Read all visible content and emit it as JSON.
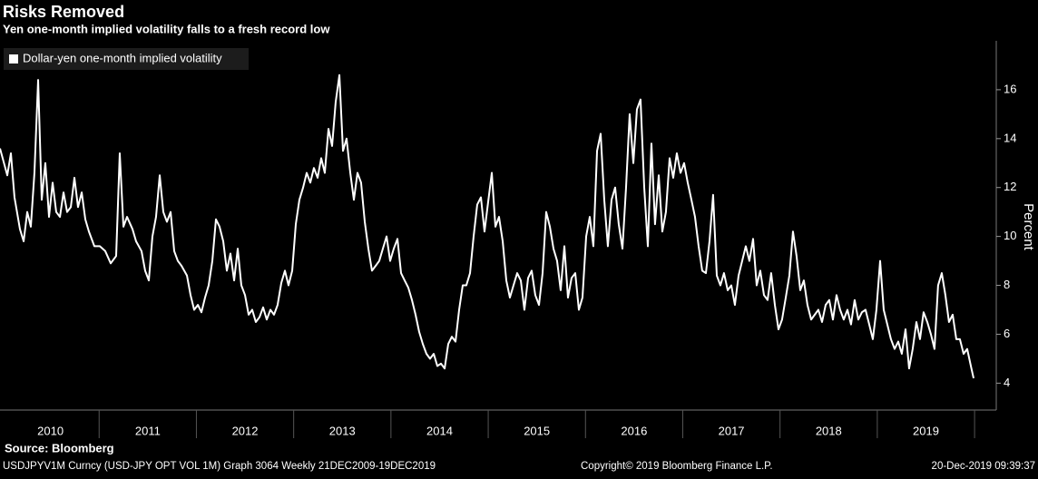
{
  "chart_data": {
    "type": "line",
    "title": "Risks Removed",
    "subtitle": "Yen one-month implied volatility falls to a fresh record low",
    "y_label": "Percent",
    "source": "Source: Bloomberg",
    "xlim": [
      2009.981,
      2020.223
    ],
    "xticks": [
      {
        "value": 2010.5,
        "label": "2010"
      },
      {
        "value": 2011.5,
        "label": "2011"
      },
      {
        "value": 2012.5,
        "label": "2012"
      },
      {
        "value": 2013.5,
        "label": "2013"
      },
      {
        "value": 2014.5,
        "label": "2014"
      },
      {
        "value": 2015.5,
        "label": "2015"
      },
      {
        "value": 2016.5,
        "label": "2016"
      },
      {
        "value": 2017.5,
        "label": "2017"
      },
      {
        "value": 2018.5,
        "label": "2018"
      },
      {
        "value": 2019.5,
        "label": "2019"
      }
    ],
    "ylim": [
      2.9,
      18
    ],
    "yticks": [
      4,
      6,
      8,
      10,
      12,
      14,
      16
    ],
    "grid": false,
    "legend": "top-left",
    "x": [
      2009.981,
      2010.056,
      2010.093,
      2010.13,
      2010.186,
      2010.224,
      2010.261,
      2010.298,
      2010.335,
      2010.373,
      2010.41,
      2010.447,
      2010.485,
      2010.522,
      2010.559,
      2010.597,
      2010.634,
      2010.671,
      2010.709,
      2010.746,
      2010.783,
      2010.821,
      2010.858,
      2010.895,
      2010.951,
      2011.007,
      2011.063,
      2011.119,
      2011.175,
      2011.212,
      2011.25,
      2011.287,
      2011.343,
      2011.38,
      2011.436,
      2011.473,
      2011.511,
      2011.548,
      2011.585,
      2011.623,
      2011.66,
      2011.697,
      2011.735,
      2011.772,
      2011.809,
      2011.847,
      2011.903,
      2011.94,
      2011.977,
      2012.015,
      2012.052,
      2012.089,
      2012.126,
      2012.164,
      2012.201,
      2012.238,
      2012.276,
      2012.313,
      2012.35,
      2012.388,
      2012.425,
      2012.462,
      2012.5,
      2012.537,
      2012.574,
      2012.611,
      2012.649,
      2012.686,
      2012.723,
      2012.761,
      2012.798,
      2012.835,
      2012.873,
      2012.91,
      2012.947,
      2012.985,
      2013.022,
      2013.059,
      2013.097,
      2013.134,
      2013.171,
      2013.208,
      2013.246,
      2013.283,
      2013.32,
      2013.358,
      2013.395,
      2013.432,
      2013.47,
      2013.507,
      2013.544,
      2013.582,
      2013.619,
      2013.656,
      2013.693,
      2013.731,
      2013.768,
      2013.805,
      2013.843,
      2013.88,
      2013.917,
      2013.955,
      2013.992,
      2014.029,
      2014.067,
      2014.104,
      2014.141,
      2014.179,
      2014.216,
      2014.253,
      2014.29,
      2014.328,
      2014.365,
      2014.402,
      2014.44,
      2014.477,
      2014.514,
      2014.552,
      2014.589,
      2014.626,
      2014.664,
      2014.701,
      2014.738,
      2014.775,
      2014.813,
      2014.85,
      2014.887,
      2014.925,
      2014.962,
      2014.999,
      2015.037,
      2015.074,
      2015.111,
      2015.149,
      2015.186,
      2015.223,
      2015.26,
      2015.298,
      2015.335,
      2015.372,
      2015.41,
      2015.447,
      2015.484,
      2015.522,
      2015.559,
      2015.596,
      2015.634,
      2015.671,
      2015.708,
      2015.745,
      2015.783,
      2015.82,
      2015.857,
      2015.895,
      2015.932,
      2015.969,
      2016.007,
      2016.044,
      2016.081,
      2016.119,
      2016.156,
      2016.193,
      2016.23,
      2016.268,
      2016.305,
      2016.342,
      2016.38,
      2016.417,
      2016.454,
      2016.492,
      2016.529,
      2016.566,
      2016.604,
      2016.641,
      2016.678,
      2016.715,
      2016.753,
      2016.79,
      2016.827,
      2016.865,
      2016.902,
      2016.939,
      2016.977,
      2017.014,
      2017.051,
      2017.089,
      2017.126,
      2017.163,
      2017.2,
      2017.238,
      2017.275,
      2017.312,
      2017.35,
      2017.387,
      2017.424,
      2017.462,
      2017.499,
      2017.536,
      2017.574,
      2017.611,
      2017.648,
      2017.685,
      2017.723,
      2017.76,
      2017.797,
      2017.835,
      2017.872,
      2017.909,
      2017.947,
      2017.984,
      2018.021,
      2018.059,
      2018.096,
      2018.133,
      2018.17,
      2018.208,
      2018.245,
      2018.282,
      2018.32,
      2018.357,
      2018.394,
      2018.432,
      2018.469,
      2018.506,
      2018.544,
      2018.581,
      2018.618,
      2018.655,
      2018.693,
      2018.73,
      2018.767,
      2018.805,
      2018.842,
      2018.879,
      2018.917,
      2018.954,
      2018.991,
      2019.029,
      2019.066,
      2019.103,
      2019.14,
      2019.178,
      2019.215,
      2019.252,
      2019.29,
      2019.327,
      2019.364,
      2019.402,
      2019.439,
      2019.476,
      2019.514,
      2019.551,
      2019.588,
      2019.625,
      2019.663,
      2019.7,
      2019.737,
      2019.775,
      2019.812,
      2019.849,
      2019.887,
      2019.924,
      2019.962,
      2019.99
    ],
    "series": [
      {
        "name": "Dollar-yen one-month implied volatility",
        "color": "#ffffff",
        "values": [
          13.6,
          12.5,
          13.4,
          11.6,
          10.3,
          9.8,
          11.0,
          10.4,
          12.6,
          16.4,
          11.5,
          13.0,
          10.8,
          12.2,
          11.0,
          10.8,
          11.8,
          11.0,
          11.2,
          12.4,
          11.2,
          11.8,
          10.7,
          10.2,
          9.6,
          9.6,
          9.4,
          8.9,
          9.2,
          13.4,
          10.4,
          10.8,
          10.3,
          9.8,
          9.4,
          8.6,
          8.2,
          10.0,
          10.8,
          12.5,
          11.0,
          10.6,
          11.0,
          9.4,
          9.0,
          8.8,
          8.4,
          7.6,
          7.0,
          7.2,
          6.9,
          7.5,
          8.0,
          9.0,
          10.7,
          10.4,
          9.8,
          8.6,
          9.3,
          8.2,
          9.5,
          8.0,
          7.6,
          6.8,
          7.0,
          6.5,
          6.7,
          7.1,
          6.6,
          7.0,
          6.8,
          7.2,
          8.1,
          8.6,
          8.0,
          8.6,
          10.5,
          11.5,
          12.0,
          12.6,
          12.2,
          12.8,
          12.4,
          13.2,
          12.6,
          14.4,
          13.7,
          15.5,
          16.6,
          13.5,
          14.0,
          12.6,
          11.5,
          12.6,
          12.2,
          10.6,
          9.5,
          8.6,
          8.8,
          9.0,
          9.5,
          10.0,
          9.0,
          9.5,
          9.9,
          8.5,
          8.2,
          7.9,
          7.4,
          6.8,
          6.1,
          5.6,
          5.2,
          5.0,
          5.2,
          4.7,
          4.8,
          4.6,
          5.6,
          5.9,
          5.7,
          7.0,
          8.0,
          8.0,
          8.5,
          10.0,
          11.3,
          11.6,
          10.2,
          11.4,
          12.6,
          10.4,
          10.8,
          9.8,
          8.2,
          7.5,
          8.0,
          8.5,
          8.2,
          7.0,
          8.3,
          8.6,
          7.6,
          7.2,
          8.5,
          11.0,
          10.4,
          9.5,
          9.0,
          7.8,
          9.6,
          7.5,
          8.3,
          8.5,
          7.0,
          7.5,
          10.0,
          10.8,
          9.6,
          13.5,
          14.2,
          11.5,
          9.6,
          11.5,
          12.0,
          10.5,
          9.5,
          12.0,
          15.0,
          13.0,
          15.2,
          15.6,
          12.0,
          9.6,
          13.8,
          10.5,
          12.5,
          10.2,
          11.0,
          13.2,
          12.4,
          13.4,
          12.6,
          13.0,
          12.2,
          11.5,
          10.8,
          9.6,
          8.6,
          8.5,
          9.8,
          11.7,
          8.4,
          8.0,
          8.5,
          7.8,
          8.0,
          7.2,
          8.4,
          9.0,
          9.6,
          9.0,
          9.9,
          8.0,
          8.6,
          7.6,
          7.4,
          8.5,
          7.2,
          6.2,
          6.6,
          7.5,
          8.4,
          10.2,
          9.2,
          7.8,
          8.2,
          7.2,
          6.6,
          6.8,
          7.0,
          6.5,
          7.2,
          7.4,
          6.6,
          7.6,
          7.0,
          6.6,
          7.0,
          6.4,
          7.4,
          6.6,
          6.9,
          7.0,
          6.4,
          5.8,
          7.0,
          9.0,
          7.0,
          6.4,
          5.8,
          5.4,
          5.7,
          5.2,
          6.2,
          4.6,
          5.4,
          6.5,
          5.8,
          6.9,
          6.5,
          6.0,
          5.4,
          8.0,
          8.5,
          7.6,
          6.5,
          6.8,
          5.8,
          5.8,
          5.2,
          5.4,
          4.7,
          4.2
        ]
      }
    ]
  },
  "footer": {
    "left": "USDJPYV1M Curncy (USD-JPY OPT VOL 1M) Graph 3064  Weekly 21DEC2009-19DEC2019",
    "center": "Copyright© 2019 Bloomberg Finance L.P.",
    "right": "20-Dec-2019 09:39:37"
  }
}
